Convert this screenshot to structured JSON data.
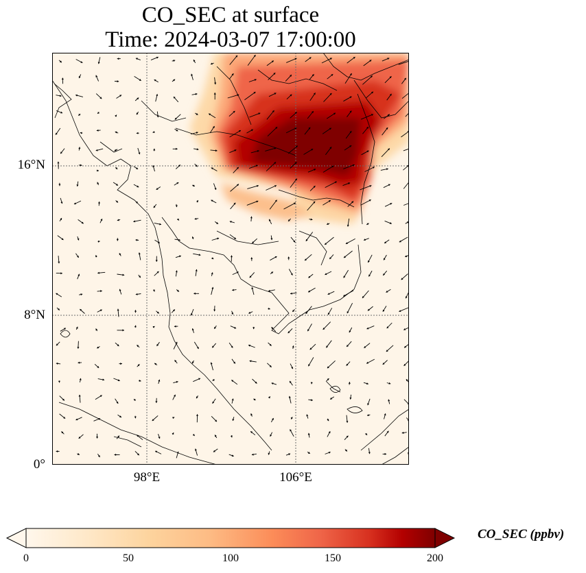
{
  "title": {
    "line1": "CO_SEC at surface",
    "line2": "Time: 2024-03-07 17:00:00"
  },
  "map": {
    "lat_labels": [
      "16°N",
      "8°N",
      "0°"
    ],
    "lon_labels": [
      "98°E",
      "106°E"
    ],
    "gridline_style": "dotted",
    "wind_vectors": "black arrows"
  },
  "colorbar": {
    "label": "CO_SEC (ppbv)",
    "ticks": [
      "0",
      "50",
      "100",
      "150",
      "200"
    ],
    "min": 0,
    "max": 200,
    "colormap": "OrRd",
    "extend": "both"
  },
  "colors": {
    "low": "#fff7ec",
    "mid": "#fc8d59",
    "high": "#7f0000"
  }
}
